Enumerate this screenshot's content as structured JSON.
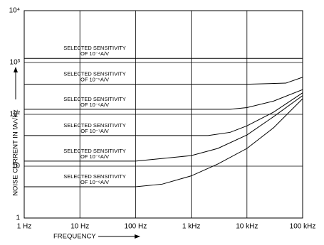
{
  "chart_data": {
    "type": "line",
    "x_label": "FREQUENCY",
    "y_label": "NOISE CURRENT  IN fA/√Hz",
    "log_x": true,
    "log_y": true,
    "grid": true,
    "color": "#000000",
    "xlim": [
      1,
      100000
    ],
    "ylim": [
      1,
      10000
    ],
    "xticks": [
      {
        "value": 1,
        "label": "1 Hz"
      },
      {
        "value": 10,
        "label": "10 Hz"
      },
      {
        "value": 100,
        "label": "100 Hz"
      },
      {
        "value": 1000,
        "label": "1 kHz"
      },
      {
        "value": 10000,
        "label": "10 kHz"
      },
      {
        "value": 100000,
        "label": "100 kHz"
      }
    ],
    "yticks": [
      1,
      10,
      {
        "value": 100,
        "label": "10²"
      },
      {
        "value": 1000,
        "label": "10³"
      },
      {
        "value": 10000,
        "label": "10⁴"
      }
    ],
    "series": [
      {
        "x": [
          1,
          100000
        ],
        "values": [
          1200,
          1200
        ]
      },
      {
        "x": [
          1,
          10000,
          50000,
          100000
        ],
        "values": [
          380,
          380,
          400,
          520
        ]
      },
      {
        "x": [
          1,
          5000,
          10000,
          30000,
          100000
        ],
        "values": [
          125,
          125,
          135,
          180,
          300
        ]
      },
      {
        "x": [
          1,
          2000,
          5000,
          10000,
          30000,
          100000
        ],
        "values": [
          39,
          39,
          45,
          60,
          110,
          260
        ]
      },
      {
        "x": [
          1,
          100,
          1000,
          3000,
          10000,
          30000,
          100000
        ],
        "values": [
          12.5,
          12.5,
          16,
          22,
          40,
          90,
          230
        ]
      },
      {
        "x": [
          1,
          100,
          300,
          1000,
          3000,
          10000,
          30000,
          100000
        ],
        "values": [
          4,
          4,
          4.5,
          6.5,
          11,
          22,
          55,
          200
        ]
      }
    ],
    "annotations": [
      [
        "SELECTED SENSITIVITY",
        "OF 10⁻⁴A/V"
      ],
      [
        "SELECTED SENSITIVITY",
        "OF 10⁻⁵A/V"
      ],
      [
        "SELECTED SENSITIVITY",
        "OF 10⁻⁶A/V"
      ],
      [
        "SELECTED SENSITIVITY",
        "OF 10⁻⁷A/V"
      ],
      [
        "SELECTED SENSITIVITY",
        "OF 10⁻⁸A/V"
      ],
      [
        "SELECTED SENSITIVITY",
        "OF 10⁻⁹A/V"
      ]
    ]
  }
}
